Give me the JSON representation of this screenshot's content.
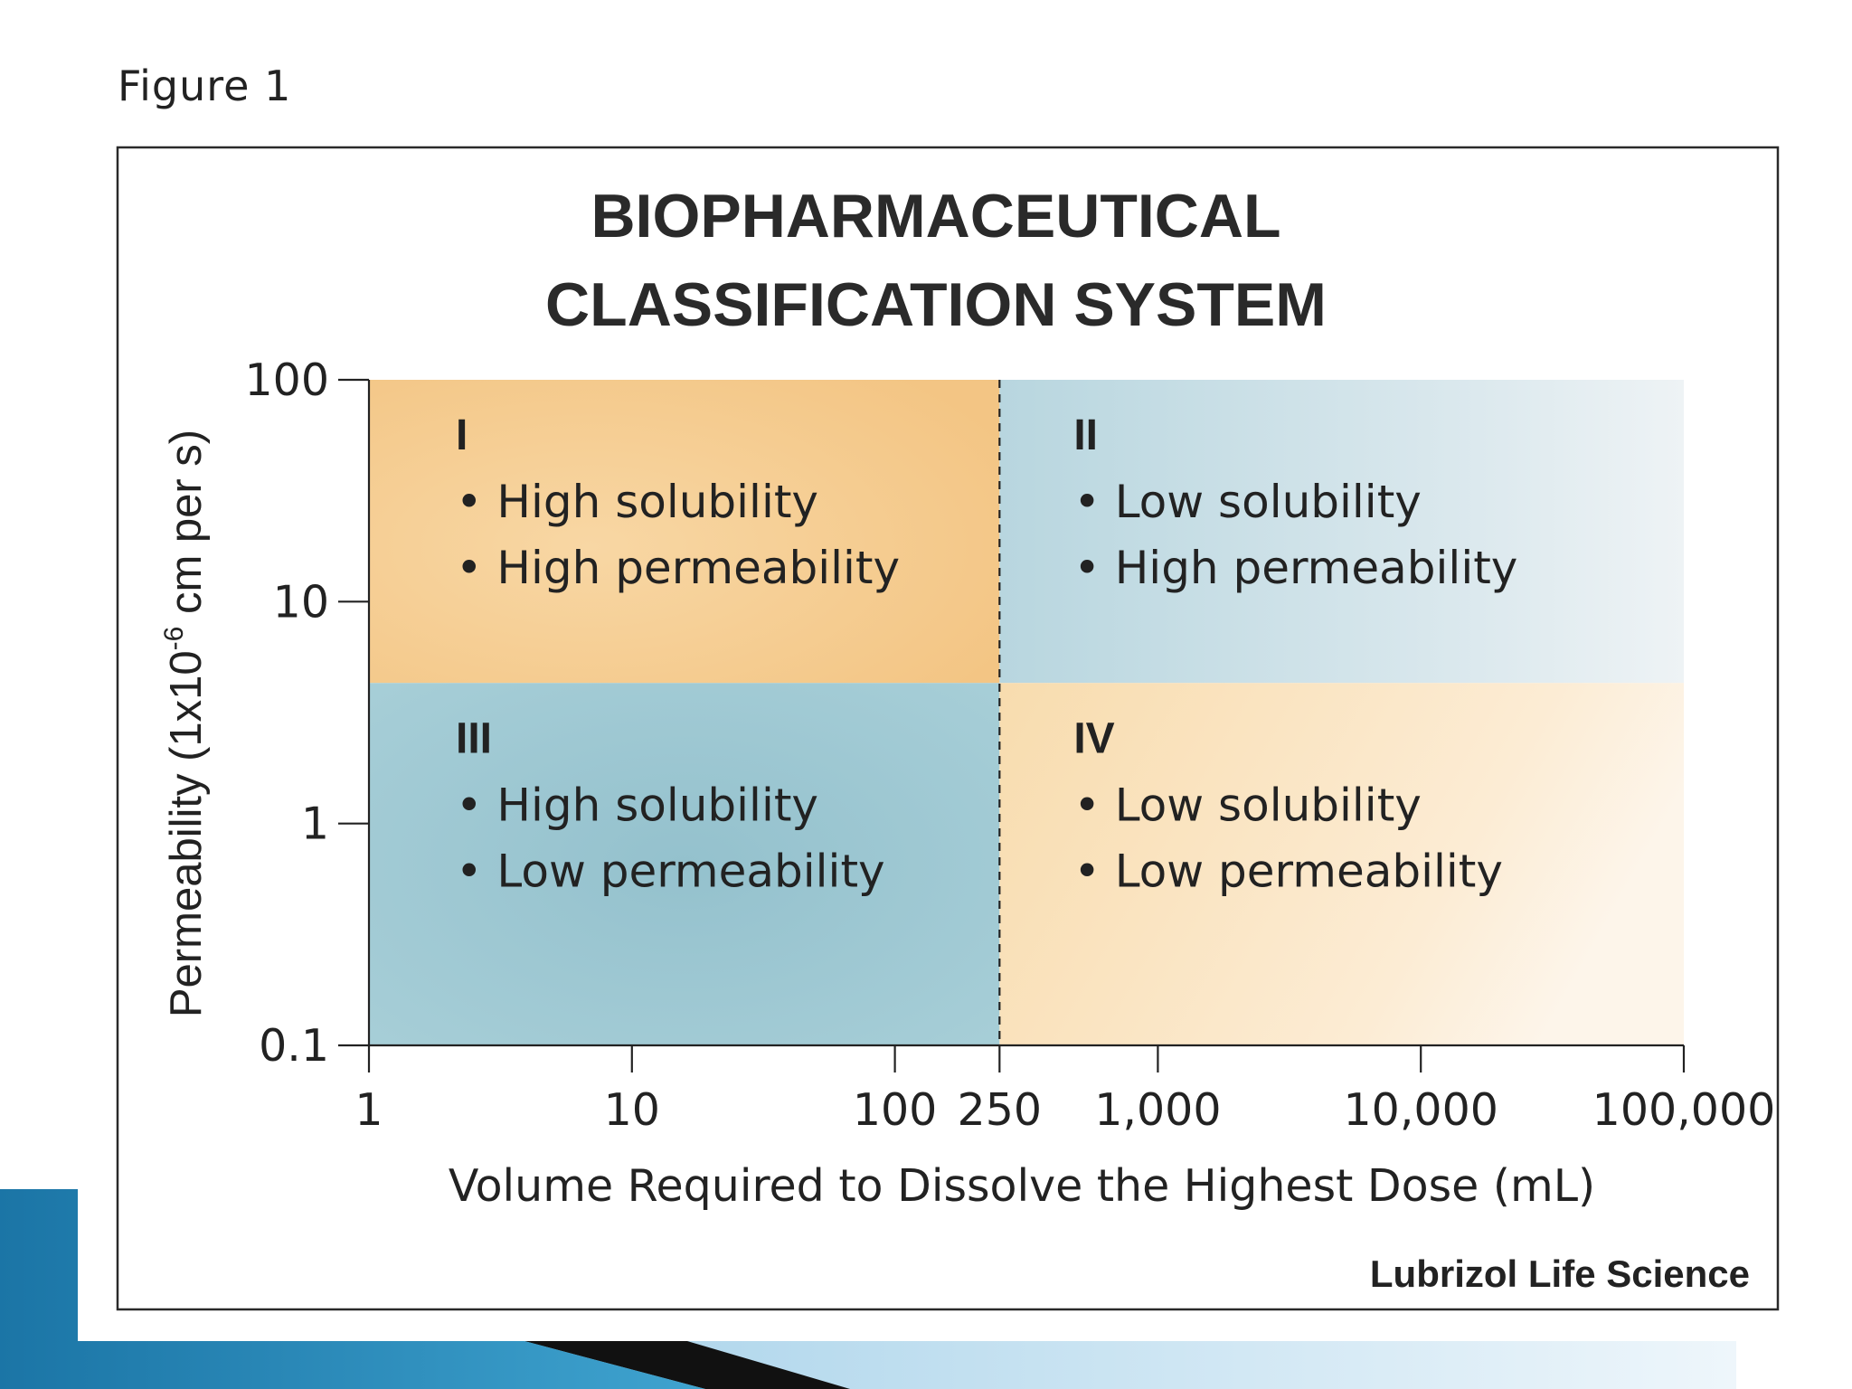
{
  "figure_label": "Figure 1",
  "source_credit": "Lubrizol Life Science",
  "colors": {
    "peach": "#f5c98a",
    "blue": "#a9cdd6",
    "deep_blue": "#8fbcc8",
    "frame": "#222222",
    "slide_accent_dark": "#111111",
    "slide_accent_blue": "#1f7fae",
    "slide_accent_light": "#d6e9f3"
  },
  "chart_data": {
    "type": "quadrant",
    "title": [
      "BIOPHARMACEUTICAL",
      "CLASSIFICATION SYSTEM"
    ],
    "xlabel": "Volume Required to Dissolve the Highest Dose (mL)",
    "ylabel_parts": {
      "before": "Permeability (1x10",
      "sup": "-6",
      "after": " cm per s)"
    },
    "x_scale": "log",
    "y_scale": "log",
    "xlim": [
      1,
      100000
    ],
    "ylim": [
      0.1,
      100
    ],
    "x_ticks": [
      {
        "value": 1,
        "label": "1"
      },
      {
        "value": 10,
        "label": "10"
      },
      {
        "value": 100,
        "label": "100"
      },
      {
        "value": 250,
        "label": "250"
      },
      {
        "value": 1000,
        "label": "1,000"
      },
      {
        "value": 10000,
        "label": "10,000"
      },
      {
        "value": 100000,
        "label": "100,000"
      }
    ],
    "y_ticks": [
      {
        "value": 0.1,
        "label": "0.1"
      },
      {
        "value": 1,
        "label": "1"
      },
      {
        "value": 10,
        "label": "10"
      },
      {
        "value": 100,
        "label": "100"
      }
    ],
    "solubility_threshold_ml": 250,
    "permeability_threshold": 4.3,
    "quadrants": [
      {
        "id": "I",
        "x_range": [
          1,
          250
        ],
        "y_range": [
          4.3,
          100
        ],
        "color": "peach",
        "lines": [
          "• High solubility",
          "• High permeability"
        ]
      },
      {
        "id": "II",
        "x_range": [
          250,
          100000
        ],
        "y_range": [
          4.3,
          100
        ],
        "color": "blue",
        "lines": [
          "• Low solubility",
          "• High permeability"
        ]
      },
      {
        "id": "III",
        "x_range": [
          1,
          250
        ],
        "y_range": [
          0.1,
          4.3
        ],
        "color": "blue",
        "lines": [
          "• High solubility",
          "• Low permeability"
        ]
      },
      {
        "id": "IV",
        "x_range": [
          250,
          100000
        ],
        "y_range": [
          0.1,
          4.3
        ],
        "color": "peach",
        "lines": [
          "• Low solubility",
          "• Low permeability"
        ]
      }
    ]
  }
}
